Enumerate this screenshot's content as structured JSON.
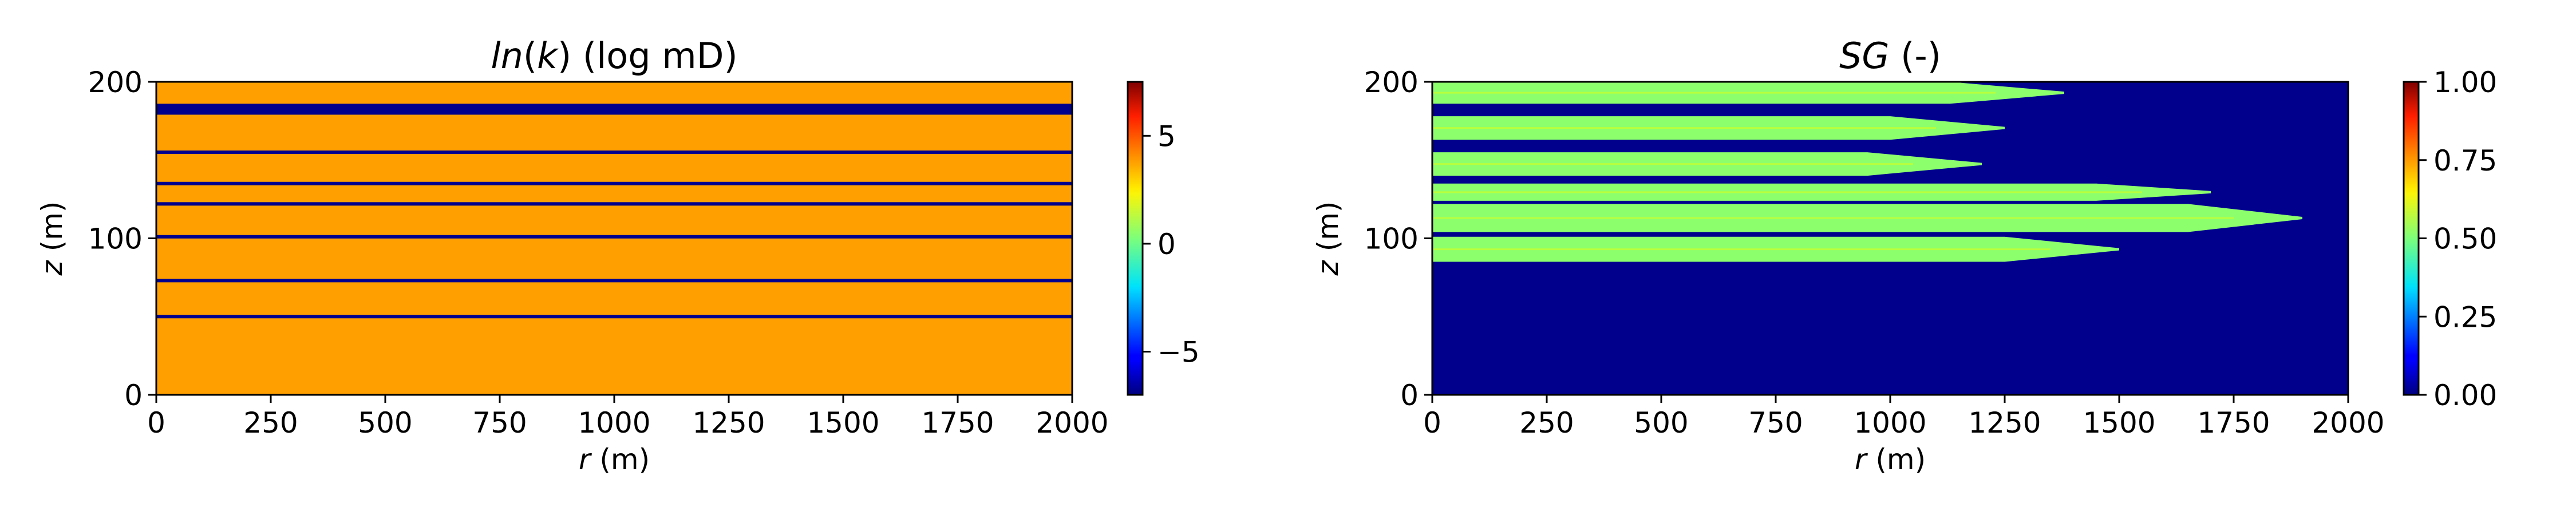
{
  "chart_data": [
    {
      "type": "heatmap",
      "title": "ln(k) (log mD)",
      "title_italic": "ln",
      "title_var": "k",
      "title_rest": " (log mD)",
      "xlabel_var": "r",
      "xlabel_unit": " (m)",
      "ylabel_var": "z",
      "ylabel_unit": " (m)",
      "xlim": [
        0,
        2000
      ],
      "ylim": [
        0,
        200
      ],
      "xticks": [
        "0",
        "250",
        "500",
        "750",
        "1000",
        "1250",
        "1500",
        "1750",
        "2000"
      ],
      "yticks": [
        "0",
        "100",
        "200"
      ],
      "colormap": "jet",
      "clim": [
        -7,
        7.5
      ],
      "colorbar_ticks": [
        "−5",
        "0",
        "5"
      ],
      "colorbar_tick_values": [
        -5,
        0,
        5
      ],
      "background_value": 2.0,
      "background_color": "#ff9f00",
      "low_perm_color": "#00008d",
      "low_perm_bands": [
        {
          "z_bottom": 179,
          "z_top": 186
        },
        {
          "z_center": 155
        },
        {
          "z_center": 135
        },
        {
          "z_center": 122
        },
        {
          "z_center": 101
        },
        {
          "z_center": 73
        },
        {
          "z_center": 50
        }
      ]
    },
    {
      "type": "heatmap",
      "title": "SG (-)",
      "title_var": "SG",
      "title_rest": " (-)",
      "xlabel_var": "r",
      "xlabel_unit": " (m)",
      "ylabel_var": "z",
      "ylabel_unit": " (m)",
      "xlim": [
        0,
        2000
      ],
      "ylim": [
        0,
        200
      ],
      "xticks": [
        "0",
        "250",
        "500",
        "750",
        "1000",
        "1250",
        "1500",
        "1750",
        "2000"
      ],
      "yticks": [
        "0",
        "100",
        "200"
      ],
      "colormap": "jet",
      "clim": [
        0,
        1
      ],
      "colorbar_ticks": [
        "0.00",
        "0.25",
        "0.50",
        "0.75",
        "1.00"
      ],
      "colorbar_tick_values": [
        0,
        0.25,
        0.5,
        0.75,
        1.0
      ],
      "background_color": "#00008d",
      "plume_color": "#8cff6d",
      "plume_layers": [
        {
          "z_bottom": 186,
          "z_top": 200,
          "r_end": 1380,
          "sg": 0.55
        },
        {
          "z_bottom": 163,
          "z_top": 178,
          "r_end": 1250,
          "sg": 0.55
        },
        {
          "z_bottom": 140,
          "z_top": 155,
          "r_end": 1200,
          "sg": 0.55
        },
        {
          "z_bottom": 124,
          "z_top": 135,
          "r_end": 1700,
          "sg": 0.55
        },
        {
          "z_bottom": 104,
          "z_top": 122,
          "r_end": 1900,
          "sg": 0.55
        },
        {
          "z_bottom": 85,
          "z_top": 101,
          "r_end": 1500,
          "sg": 0.55
        }
      ]
    }
  ]
}
